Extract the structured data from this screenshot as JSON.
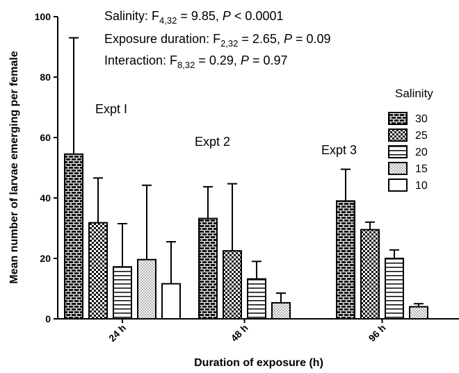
{
  "chart_data": {
    "type": "bar",
    "xlabel": "Duration of exposure (h)",
    "ylabel": "Mean number of larvae emerging per female",
    "ylim": [
      0,
      100
    ],
    "yticks": [
      "0",
      "20",
      "40",
      "60",
      "80",
      "100"
    ],
    "categories": [
      "24 h",
      "48 h",
      "96 h"
    ],
    "legend_title": "Salinity",
    "legend_position": "right",
    "series": [
      {
        "name": "30",
        "pattern": "brick",
        "values": [
          54.5,
          33.2,
          39.0
        ],
        "errors": [
          38.5,
          10.5,
          10.5
        ]
      },
      {
        "name": "25",
        "pattern": "checker",
        "values": [
          31.8,
          22.5,
          29.5
        ],
        "errors": [
          14.8,
          22.2,
          2.5
        ]
      },
      {
        "name": "20",
        "pattern": "hlines",
        "values": [
          17.2,
          13.2,
          20.0
        ],
        "errors": [
          14.3,
          5.8,
          2.8
        ]
      },
      {
        "name": "15",
        "pattern": "dots",
        "values": [
          19.6,
          5.3,
          4.0
        ],
        "errors": [
          24.6,
          3.2,
          1.0
        ]
      },
      {
        "name": "10",
        "pattern": "blank",
        "values": [
          11.6,
          null,
          null
        ],
        "errors": [
          13.9,
          null,
          null
        ]
      }
    ],
    "annotations": {
      "salinity": {
        "prefix": "Salinity: F",
        "sub": "4,32",
        "mid": " = 9.85, ",
        "p": "P",
        "tail": " < 0.0001"
      },
      "duration": {
        "prefix": "Exposure duration: F",
        "sub": "2,32",
        "mid": " = 2.65, ",
        "p": "P",
        "tail": " = 0.09"
      },
      "interaction": {
        "prefix": "Interaction: F",
        "sub": "8,32",
        "mid": " = 0.29, ",
        "p": "P",
        "tail": " = 0.97"
      }
    },
    "group_labels": [
      "Expt I",
      "Expt 2",
      "Expt 3"
    ]
  }
}
